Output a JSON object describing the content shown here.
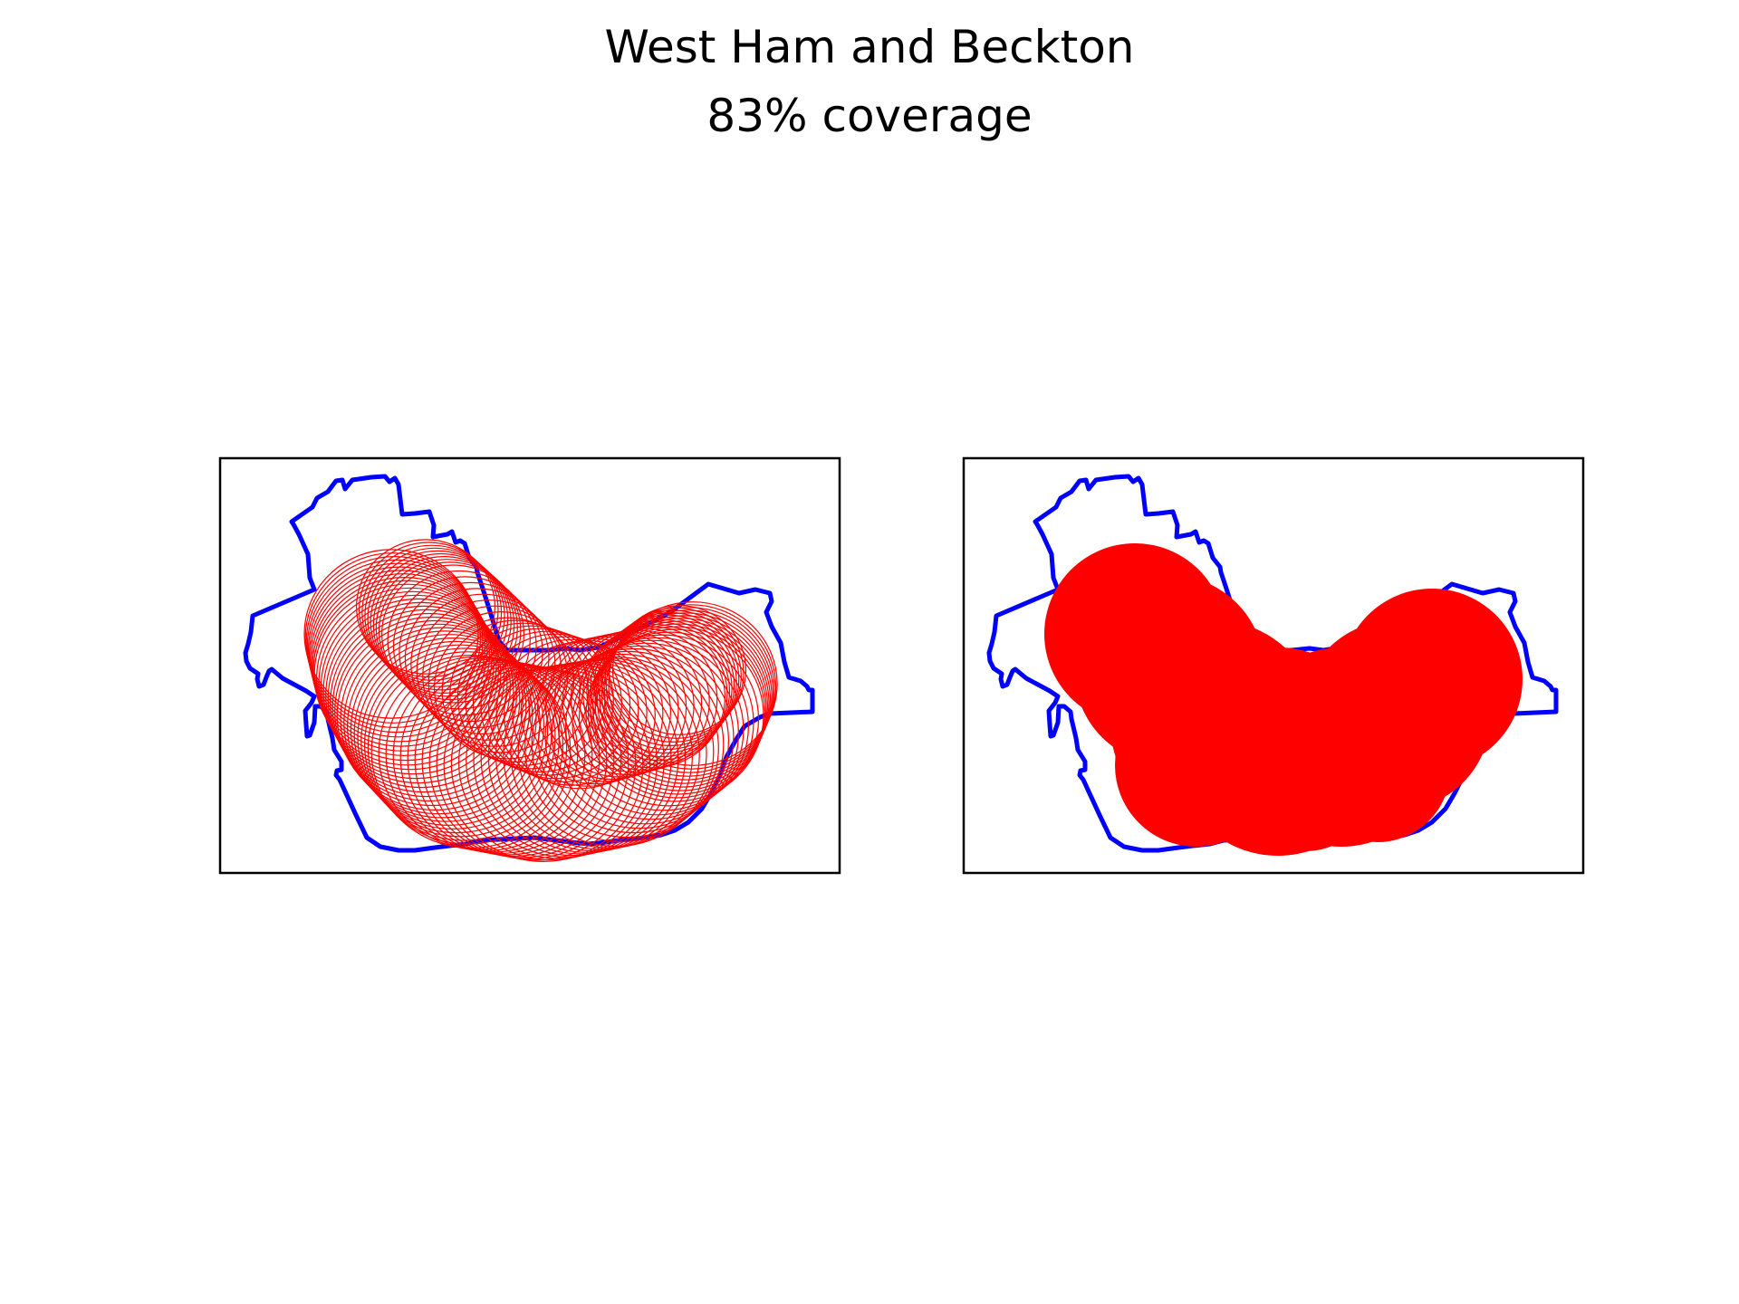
{
  "figure": {
    "title": "West Ham and Beckton",
    "subtitle": "83% coverage"
  },
  "colors": {
    "boundary": "#0000ff",
    "coverage": "#ff0000",
    "frame": "#000000",
    "background": "#ffffff"
  },
  "panels": [
    {
      "name": "swept-circles",
      "coverage_style": "outlined circles"
    },
    {
      "name": "filled-union",
      "coverage_style": "filled union"
    }
  ]
}
